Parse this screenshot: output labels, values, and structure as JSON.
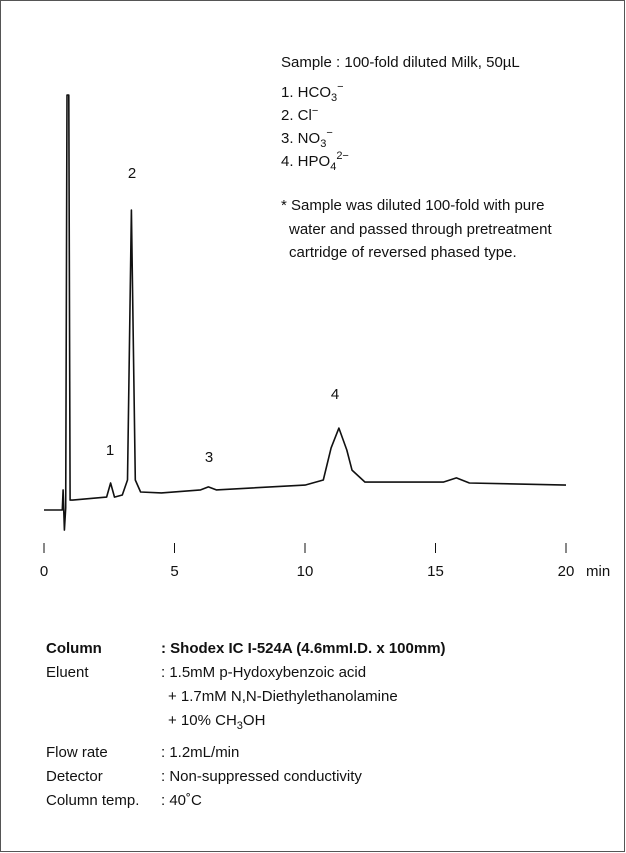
{
  "chart_data": {
    "type": "line",
    "x": [
      0,
      0.7,
      0.73,
      0.78,
      0.83,
      0.88,
      0.95,
      1.0,
      1.1,
      2.4,
      2.55,
      2.7,
      3.0,
      3.2,
      3.35,
      3.5,
      3.7,
      4.5,
      6.0,
      6.3,
      6.6,
      10.0,
      10.7,
      11.0,
      11.3,
      11.6,
      11.8,
      12.3,
      15.3,
      15.8,
      16.3,
      20
    ],
    "values": [
      2.0,
      2.0,
      6.7,
      -2.7,
      2.5,
      98.8,
      98.8,
      4.3,
      4.3,
      5.0,
      8.3,
      5.0,
      5.5,
      9.0,
      72.0,
      9.0,
      6.2,
      6.0,
      6.7,
      7.4,
      6.7,
      7.8,
      9.0,
      16.5,
      21.1,
      16.0,
      11.3,
      8.5,
      8.5,
      9.5,
      8.3,
      7.8
    ],
    "color": "#111111",
    "xlim": [
      0,
      20
    ],
    "xticks": [
      0,
      5,
      10,
      15,
      20
    ],
    "xlabel": "min",
    "ylim": [
      -5,
      100
    ],
    "annotations": [
      "1",
      "2",
      "3",
      "4"
    ]
  },
  "legend": {
    "sample": "Sample : 100-fold diluted Milk, 50µL",
    "peaks": [
      {
        "text": "1. HCO",
        "sub": "3",
        "sup": "−"
      },
      {
        "text": "2. Cl",
        "sup": "−"
      },
      {
        "text": "3. NO",
        "sub": "3",
        "sup": "−"
      },
      {
        "text": "4. HPO",
        "sub": "4",
        "sup": "2−"
      }
    ],
    "note": [
      "* Sample was diluted 100-fold with pure",
      "water and passed through pretreatment",
      "cartridge of reversed phased type."
    ]
  },
  "method": {
    "column": [
      "Column",
      ": Shodex IC I-524A (4.6mmI.D. x 100mm)"
    ],
    "eluent": [
      "Eluent",
      ": 1.5mM p-Hydoxybenzoic acid",
      "+ 1.7mM N,N-Diethylethanolamine",
      "+ 10% CH",
      "3",
      "OH"
    ],
    "flow": [
      "Flow rate",
      ": 1.2mL/min"
    ],
    "detector": [
      "Detector",
      ": Non-suppressed conductivity"
    ],
    "temp": [
      "Column temp.",
      ": 40˚C"
    ]
  }
}
